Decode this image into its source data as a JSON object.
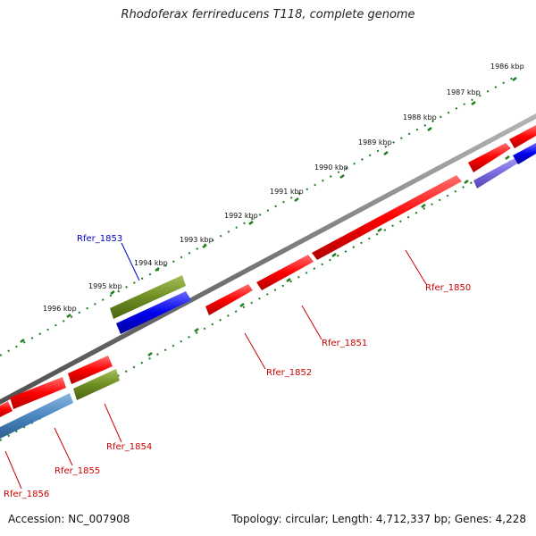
{
  "title": "Rhodoferax ferrireducens T118, complete genome",
  "footer": {
    "accession": "Accession: NC_007908",
    "topology": "Topology: circular; Length: 4,712,337 bp; Genes: 4,228"
  },
  "colors": {
    "backbone": "#777777",
    "tick": "#1e7d1e",
    "gene_red": "#ff0000",
    "gene_blue": "#0000ee",
    "gene_green": "#6e8e22",
    "gene_steelblue": "#4a86c0",
    "gene_violet": "#7b6ce0",
    "label_red": "#cc0000",
    "label_blue": "#0000cc"
  },
  "kbp_labels": [
    "1986 kbp",
    "1987 kbp",
    "1988 kbp",
    "1989 kbp",
    "1990 kbp",
    "1991 kbp",
    "1992 kbp",
    "1993 kbp",
    "1994 kbp",
    "1995 kbp",
    "1996 kbp"
  ],
  "gene_labels": [
    "Rfer_1850",
    "Rfer_1851",
    "Rfer_1852",
    "Rfer_1853",
    "Rfer_1854",
    "Rfer_1855",
    "Rfer_1856"
  ]
}
